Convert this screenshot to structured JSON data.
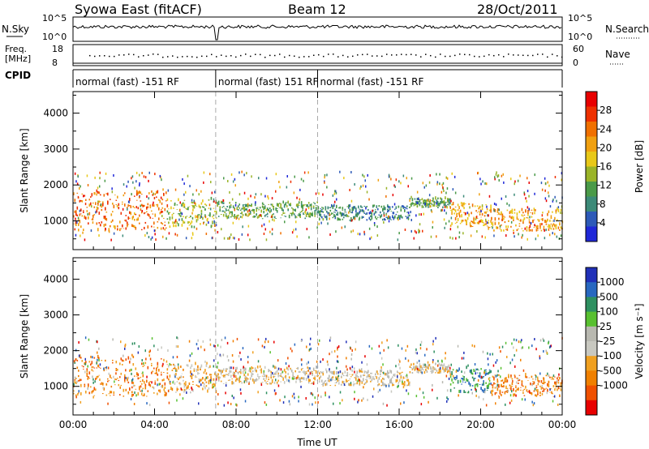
{
  "header": {
    "station": "Syowa East (fitACF)",
    "beam": "Beam 12",
    "date": "28/Oct/2011"
  },
  "strips": {
    "nsky_label": "N.Sky",
    "nsearch_label": "N.Search",
    "noise_ticks": [
      "10^5",
      "10^0"
    ],
    "freq_label_1": "Freq.",
    "freq_label_2": "[MHz]",
    "freq_ticks": [
      "18",
      "8"
    ],
    "nave_label": "Nave",
    "nave_ticks": [
      "60",
      "0"
    ],
    "cpid_label": "CPID",
    "cpid_segments": [
      {
        "label": "normal (fast) -151 RF",
        "start_hour": 0.0,
        "end_hour": 7.0
      },
      {
        "label": "normal (fast) 151 RF",
        "start_hour": 7.0,
        "end_hour": 12.0
      },
      {
        "label": "normal (fast) -151 RF",
        "start_hour": 12.0,
        "end_hour": 24.0
      }
    ]
  },
  "chart_data": [
    {
      "type": "heatmap",
      "parameter": "power",
      "ylabel": "Slant Range [km]",
      "xlabel": "Time UT",
      "x_ticks": [
        "00:00",
        "04:00",
        "08:00",
        "12:00",
        "16:00",
        "20:00",
        "00:00"
      ],
      "y_ticks": [
        1000,
        2000,
        3000,
        4000
      ],
      "xlim_hours": [
        0,
        24
      ],
      "ylim_km": [
        200,
        4600
      ],
      "colorbar": {
        "label": "Power [dB]",
        "ticks": [
          4,
          8,
          12,
          16,
          20,
          24,
          28
        ],
        "range": [
          0,
          32
        ],
        "colors": [
          "#1f28d8",
          "#2d5ab8",
          "#3c8a78",
          "#4a9a48",
          "#9ab428",
          "#e8c818",
          "#f0a010",
          "#f07000",
          "#ee3000",
          "#e80000"
        ]
      },
      "scan_mode_changes_hours": [
        7.0,
        12.0
      ],
      "regions": [
        {
          "t_start": 0.0,
          "t_end": 4.6,
          "r_low": 700,
          "r_high": 1800,
          "level_db": 24
        },
        {
          "t_start": 4.6,
          "t_end": 7.0,
          "r_low": 800,
          "r_high": 1600,
          "level_db": 14
        },
        {
          "t_start": 7.0,
          "t_end": 12.0,
          "r_low": 1050,
          "r_high": 1500,
          "level_db": 10
        },
        {
          "t_start": 12.0,
          "t_end": 16.5,
          "r_low": 1000,
          "r_high": 1400,
          "level_db": 8
        },
        {
          "t_start": 16.5,
          "t_end": 18.5,
          "r_low": 1350,
          "r_high": 1600,
          "level_db": 12
        },
        {
          "t_start": 18.5,
          "t_end": 20.5,
          "r_low": 800,
          "r_high": 1500,
          "level_db": 22
        },
        {
          "t_start": 20.5,
          "t_end": 24.0,
          "r_low": 700,
          "r_high": 1300,
          "level_db": 22
        }
      ]
    },
    {
      "type": "heatmap",
      "parameter": "velocity",
      "ylabel": "Slant Range [km]",
      "xlabel": "Time UT",
      "x_ticks": [
        "00:00",
        "04:00",
        "08:00",
        "12:00",
        "16:00",
        "20:00",
        "00:00"
      ],
      "y_ticks": [
        1000,
        2000,
        3000,
        4000
      ],
      "xlim_hours": [
        0,
        24
      ],
      "ylim_km": [
        200,
        4600
      ],
      "colorbar": {
        "label": "Velocity [m s⁻¹]",
        "ticks": [
          "1000",
          "500",
          "100",
          "25",
          "-25",
          "-100",
          "-500",
          "-1000"
        ],
        "colors": [
          "#2030b8",
          "#2868c0",
          "#2e9060",
          "#58c030",
          "#b8b8b0",
          "#c8c8c0",
          "#f0a020",
          "#f08000",
          "#f05000",
          "#e80000"
        ]
      },
      "scan_mode_changes_hours": [
        7.0,
        12.0
      ],
      "regions": [
        {
          "t_start": 0.0,
          "t_end": 4.6,
          "r_low": 700,
          "r_high": 1800,
          "velocity": -500
        },
        {
          "t_start": 4.6,
          "t_end": 7.0,
          "r_low": 800,
          "r_high": 1600,
          "velocity": -100
        },
        {
          "t_start": 7.0,
          "t_end": 12.0,
          "r_low": 1050,
          "r_high": 1500,
          "velocity": 0
        },
        {
          "t_start": 12.0,
          "t_end": 16.5,
          "r_low": 1000,
          "r_high": 1400,
          "velocity": 0
        },
        {
          "t_start": 16.5,
          "t_end": 18.5,
          "r_low": 1350,
          "r_high": 1600,
          "velocity": 0
        },
        {
          "t_start": 18.5,
          "t_end": 20.5,
          "r_low": 800,
          "r_high": 1500,
          "velocity": 300
        },
        {
          "t_start": 20.5,
          "t_end": 24.0,
          "r_low": 700,
          "r_high": 1300,
          "velocity": -500
        }
      ]
    }
  ]
}
